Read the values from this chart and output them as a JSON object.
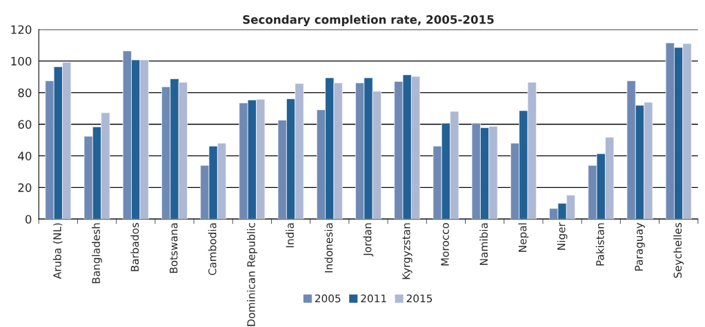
{
  "chart_data": {
    "type": "bar",
    "title": "Secondary completion rate, 2005-2015",
    "categories": [
      "Aruba (NL)",
      "Bangladesh",
      "Barbados",
      "Botswana",
      "Cambodia",
      "Dominican Republic",
      "India",
      "Indonesia",
      "Jordan",
      "Kyrgyzstan",
      "Morocco",
      "Namibia",
      "Nepal",
      "Niger",
      "Pakistan",
      "Paraguay",
      "Seychelles"
    ],
    "series": [
      {
        "name": "2005",
        "color": "#6e8ab4",
        "values": [
          87.5,
          52.4,
          106.4,
          83.7,
          34.0,
          73.5,
          62.6,
          69.2,
          86.2,
          87.1,
          46.2,
          60.7,
          48.0,
          6.7,
          34.0,
          87.5,
          111.5
        ]
      },
      {
        "name": "2011",
        "color": "#226195",
        "values": [
          96.4,
          58.4,
          100.7,
          88.8,
          46.2,
          75.4,
          76.1,
          89.4,
          89.4,
          91.3,
          60.7,
          57.8,
          68.6,
          10.0,
          41.4,
          72.0,
          108.6
        ]
      },
      {
        "name": "2015",
        "color": "#adb8d5",
        "values": [
          99.2,
          67.3,
          100.7,
          86.6,
          48.0,
          75.8,
          85.8,
          86.2,
          80.9,
          90.3,
          68.2,
          58.7,
          86.6,
          15.2,
          51.8,
          73.9,
          111.1
        ]
      }
    ],
    "ylim": [
      0,
      120
    ],
    "yticks": [
      0,
      20,
      40,
      60,
      80,
      100,
      120
    ],
    "grid": "y",
    "legend": "bottom"
  }
}
